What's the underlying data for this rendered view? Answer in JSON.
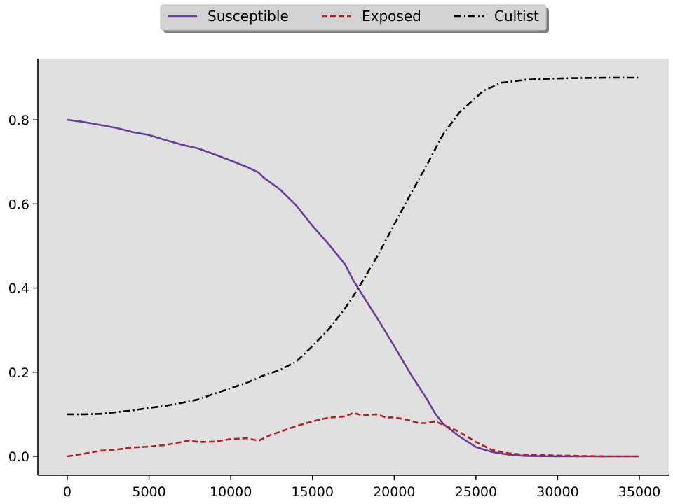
{
  "chart_data": {
    "type": "line",
    "title": "",
    "xlabel": "",
    "ylabel": "",
    "xlim": [
      -1800,
      36800
    ],
    "ylim": [
      -0.045,
      0.945
    ],
    "x_ticks": [
      0,
      5000,
      10000,
      15000,
      20000,
      25000,
      30000,
      35000
    ],
    "y_ticks": [
      0.0,
      0.2,
      0.4,
      0.6,
      0.8
    ],
    "x_tick_labels": [
      "0",
      "5000",
      "10000",
      "15000",
      "20000",
      "25000",
      "30000",
      "35000"
    ],
    "y_tick_labels": [
      "0.0",
      "0.2",
      "0.4",
      "0.6",
      "0.8"
    ],
    "grid": false,
    "legend_position": "top-center, above plot",
    "background_color": "#e0e0e0",
    "series": [
      {
        "name": "Susceptible",
        "color": "#6a3d9a",
        "style": "solid",
        "x": [
          0,
          1000,
          2000,
          3000,
          4000,
          5000,
          6000,
          7000,
          8000,
          9000,
          10000,
          11000,
          11700,
          12000,
          13000,
          14000,
          15000,
          16000,
          17000,
          17500,
          18000,
          19000,
          20000,
          21000,
          22000,
          22500,
          23000,
          24000,
          25000,
          26000,
          27000,
          28000,
          30000,
          33000,
          35000
        ],
        "values": [
          0.8,
          0.795,
          0.788,
          0.781,
          0.771,
          0.764,
          0.752,
          0.741,
          0.732,
          0.718,
          0.703,
          0.688,
          0.675,
          0.663,
          0.635,
          0.597,
          0.548,
          0.504,
          0.456,
          0.418,
          0.387,
          0.326,
          0.262,
          0.196,
          0.136,
          0.102,
          0.077,
          0.047,
          0.022,
          0.01,
          0.004,
          0.001,
          0.0,
          0.0,
          0.0
        ]
      },
      {
        "name": "Exposed",
        "color": "#b22222",
        "style": "dashed",
        "x": [
          0,
          1000,
          2000,
          3000,
          4000,
          5000,
          6000,
          7000,
          7500,
          8000,
          9000,
          10000,
          11000,
          11700,
          12500,
          13000,
          14000,
          15000,
          16000,
          17000,
          17500,
          18000,
          19000,
          19500,
          20000,
          21000,
          21500,
          22000,
          22500,
          23000,
          24000,
          25000,
          26000,
          27000,
          28000,
          30000,
          33000,
          35000
        ],
        "values": [
          0.0,
          0.006,
          0.013,
          0.016,
          0.021,
          0.023,
          0.027,
          0.034,
          0.038,
          0.034,
          0.035,
          0.041,
          0.043,
          0.037,
          0.052,
          0.058,
          0.072,
          0.083,
          0.092,
          0.095,
          0.103,
          0.098,
          0.1,
          0.092,
          0.093,
          0.085,
          0.079,
          0.079,
          0.083,
          0.075,
          0.058,
          0.034,
          0.015,
          0.007,
          0.004,
          0.002,
          0.0,
          0.0
        ]
      },
      {
        "name": "Cultist",
        "color": "#000000",
        "style": "dashdot",
        "x": [
          0,
          1000,
          2000,
          3000,
          4000,
          5000,
          6000,
          7000,
          8000,
          9000,
          10000,
          11000,
          12000,
          13000,
          14000,
          15000,
          16000,
          17000,
          17500,
          18000,
          19000,
          20000,
          21000,
          22000,
          23000,
          24000,
          25000,
          25500,
          26000,
          26500,
          27000,
          28000,
          29000,
          30000,
          31000,
          33000,
          35000
        ],
        "values": [
          0.1,
          0.1,
          0.101,
          0.105,
          0.109,
          0.115,
          0.12,
          0.127,
          0.135,
          0.149,
          0.162,
          0.175,
          0.192,
          0.205,
          0.225,
          0.262,
          0.302,
          0.352,
          0.381,
          0.412,
          0.478,
          0.551,
          0.623,
          0.693,
          0.766,
          0.818,
          0.853,
          0.87,
          0.878,
          0.888,
          0.89,
          0.895,
          0.897,
          0.898,
          0.899,
          0.9,
          0.9
        ]
      }
    ]
  }
}
